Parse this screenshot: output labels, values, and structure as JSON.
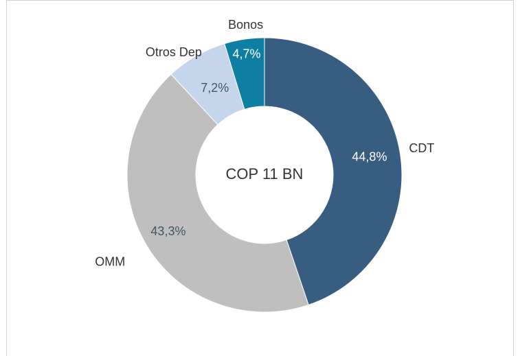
{
  "chart_data": {
    "type": "pie",
    "hole": true,
    "center_label": "COP 11 BN",
    "categories": [
      "CDT",
      "OMM",
      "Otros Dep",
      "Bonos"
    ],
    "values": [
      44.8,
      43.3,
      7.2,
      4.7
    ],
    "value_labels": [
      "44,8%",
      "43,3%",
      "7,2%",
      "4,7%"
    ],
    "colors": [
      "#375d81",
      "#bfbfbf",
      "#c5d5ec",
      "#0e7fa3"
    ],
    "label_colors": [
      "#ffffff",
      "#44546a",
      "#44546a",
      "#ffffff"
    ]
  }
}
